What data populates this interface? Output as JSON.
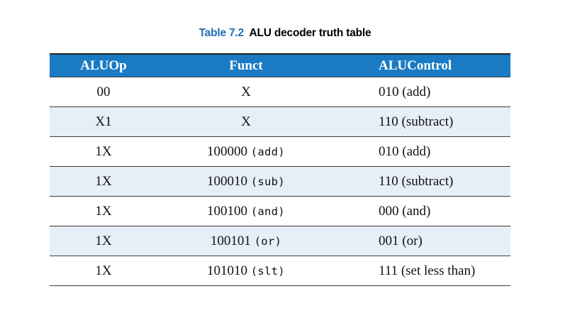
{
  "caption": {
    "number": "Table 7.2",
    "title": "ALU decoder truth table"
  },
  "table": {
    "headers": [
      "ALUOp",
      "Funct",
      "ALUControl"
    ],
    "rows": [
      {
        "aluop": "00",
        "funct": "X",
        "funct_op": "",
        "alucontrol": "010 (add)"
      },
      {
        "aluop": "X1",
        "funct": "X",
        "funct_op": "",
        "alucontrol": "110 (subtract)"
      },
      {
        "aluop": "1X",
        "funct": "100000",
        "funct_op": "(add)",
        "alucontrol": "010 (add)"
      },
      {
        "aluop": "1X",
        "funct": "100010",
        "funct_op": "(sub)",
        "alucontrol": "110 (subtract)"
      },
      {
        "aluop": "1X",
        "funct": "100100",
        "funct_op": "(and)",
        "alucontrol": "000 (and)"
      },
      {
        "aluop": "1X",
        "funct": "100101",
        "funct_op": "(or)",
        "alucontrol": "001 (or)"
      },
      {
        "aluop": "1X",
        "funct": "101010",
        "funct_op": "(slt)",
        "alucontrol": "111 (set less than)"
      }
    ]
  }
}
